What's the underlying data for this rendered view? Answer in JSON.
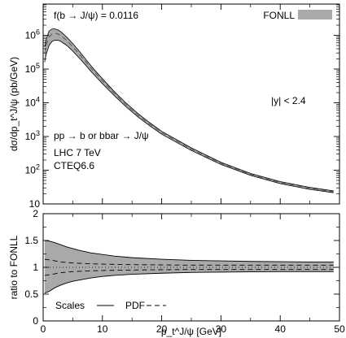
{
  "chart_data": [
    {
      "type": "area",
      "panel": "top",
      "ylabel": "dσ/dp_t^J/ψ (pb/GeV)",
      "yscale": "log",
      "ylim": [
        10,
        5000000
      ],
      "xlim": [
        0,
        50
      ],
      "y_ticks": [
        10,
        100,
        1000,
        10000,
        100000,
        1000000
      ],
      "legend": {
        "position": "top-right",
        "entries": [
          {
            "label": "FONLL",
            "style": "grey-band"
          }
        ]
      },
      "annotations": {
        "fraction": "f(b → J/ψ) = 0.0116",
        "process": "pp → b or bbar → J/ψ",
        "rapidity": "|y| < 2.4",
        "energy": "LHC 7 TeV",
        "pdf_set": "CTEQ6.6"
      },
      "x": [
        0.25,
        0.5,
        1,
        1.5,
        2,
        2.5,
        3,
        4,
        5,
        6,
        7,
        8,
        9,
        10,
        12,
        14,
        16,
        18,
        20,
        25,
        30,
        35,
        40,
        45,
        49
      ],
      "series": [
        {
          "role": "central",
          "values": [
            300000,
            500000,
            900000,
            1100000,
            1150000,
            1100000,
            980000,
            700000,
            460000,
            290000,
            180000,
            110000,
            70000,
            45000,
            19000,
            8700,
            4300,
            2300,
            1300,
            420,
            160,
            75,
            43,
            29,
            23
          ]
        },
        {
          "role": "band-upper",
          "values": [
            450000,
            750000,
            1350000,
            1550000,
            1550000,
            1450000,
            1280000,
            880000,
            570000,
            355000,
            215000,
            130000,
            81000,
            52000,
            21500,
            9800,
            4800,
            2550,
            1430,
            460,
            172,
            80,
            46,
            31,
            24.5
          ]
        },
        {
          "role": "band-lower",
          "values": [
            160000,
            270000,
            500000,
            660000,
            720000,
            720000,
            660000,
            500000,
            340000,
            220000,
            142000,
            88000,
            57000,
            37000,
            16300,
            7600,
            3800,
            2060,
            1170,
            385,
            148,
            70,
            40,
            27,
            21.5
          ]
        }
      ]
    },
    {
      "type": "area",
      "panel": "bottom",
      "xlabel": "p_t^J/ψ [GeV]",
      "ylabel": "ratio to FONLL",
      "xlim": [
        0,
        50
      ],
      "ylim": [
        0,
        2
      ],
      "x_ticks": [
        0,
        10,
        20,
        30,
        40,
        50
      ],
      "y_ticks": [
        0,
        0.5,
        1,
        1.5,
        2
      ],
      "legend": {
        "position": "bottom-left",
        "entries": [
          {
            "label": "Scales",
            "style": "solid"
          },
          {
            "label": "PDF",
            "style": "dashed"
          }
        ]
      },
      "x": [
        0.25,
        1,
        2,
        3,
        4,
        5,
        6,
        8,
        10,
        12,
        15,
        20,
        25,
        30,
        35,
        40,
        45,
        49
      ],
      "series": [
        {
          "role": "scales-upper",
          "values": [
            1.5,
            1.49,
            1.46,
            1.42,
            1.38,
            1.35,
            1.32,
            1.27,
            1.24,
            1.21,
            1.18,
            1.15,
            1.13,
            1.12,
            1.11,
            1.105,
            1.1,
            1.1
          ]
        },
        {
          "role": "scales-lower",
          "values": [
            0.52,
            0.55,
            0.62,
            0.67,
            0.71,
            0.74,
            0.76,
            0.8,
            0.83,
            0.85,
            0.87,
            0.89,
            0.905,
            0.91,
            0.915,
            0.92,
            0.92,
            0.92
          ]
        },
        {
          "role": "pdf-upper",
          "values": [
            1.15,
            1.14,
            1.12,
            1.1,
            1.09,
            1.08,
            1.075,
            1.065,
            1.06,
            1.055,
            1.05,
            1.045,
            1.04,
            1.04,
            1.04,
            1.04,
            1.04,
            1.04
          ]
        },
        {
          "role": "pdf-lower",
          "values": [
            0.85,
            0.86,
            0.88,
            0.9,
            0.91,
            0.92,
            0.925,
            0.935,
            0.94,
            0.945,
            0.95,
            0.955,
            0.96,
            0.96,
            0.96,
            0.96,
            0.96,
            0.96
          ]
        }
      ]
    }
  ],
  "colors": {
    "band": "#a9a9a9",
    "line": "#000000",
    "central_dash": "#555555"
  }
}
